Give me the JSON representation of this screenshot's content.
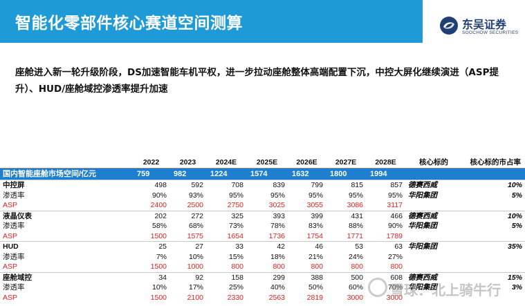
{
  "header": {
    "title": "智能化零部件核心赛道空间测算"
  },
  "logo": {
    "name": "东吴证券",
    "english": "SOOCHOW SECURITIES"
  },
  "intro": "座舱进入新一轮升级阶段，DS加速智能车机平权，进一步拉动座舱整体高端配置下沉，中控大屏化继续演进（ASP提升）、HUD/座舱域控渗透率提升加速",
  "table": {
    "headers": [
      "",
      "2022",
      "2023",
      "2024E",
      "2025E",
      "2026E",
      "2027E",
      "2028E",
      "核心标的",
      "核心标的市占率"
    ],
    "market": {
      "label": "国内智能座舱市场空间/亿元",
      "values": [
        "759",
        "982",
        "1224",
        "1574",
        "1632",
        "1800",
        "1994"
      ]
    },
    "rows": [
      {
        "type": "cat",
        "label": "中控屏",
        "values": [
          "498",
          "592",
          "708",
          "839",
          "799",
          "815",
          "857"
        ],
        "company": "德赛西威",
        "share": "10%"
      },
      {
        "type": "pen",
        "label": "渗透率",
        "values": [
          "90%",
          "93%",
          "95%",
          "95%",
          "95%",
          "95%",
          "95%"
        ],
        "company": "华阳集团",
        "share": "5%"
      },
      {
        "type": "asp",
        "label": "ASP",
        "values": [
          "2400",
          "2500",
          "2750",
          "3025",
          "3055",
          "3086",
          "3117"
        ],
        "company": "",
        "share": ""
      },
      {
        "type": "cat",
        "label": "液晶仪表",
        "values": [
          "202",
          "272",
          "325",
          "393",
          "399",
          "431",
          "466"
        ],
        "company": "德赛西威",
        "share": "10%"
      },
      {
        "type": "pen",
        "label": "渗透率",
        "values": [
          "58%",
          "68%",
          "73%",
          "78%",
          "83%",
          "88%",
          "90%"
        ],
        "company": "华阳集团",
        "share": "5%"
      },
      {
        "type": "asp",
        "label": "ASP",
        "values": [
          "1500",
          "1575",
          "1654",
          "1736",
          "1754",
          "1771",
          "1789"
        ],
        "company": "",
        "share": ""
      },
      {
        "type": "cat",
        "label": "HUD",
        "values": [
          "25",
          "27",
          "33",
          "42",
          "46",
          "53",
          "63"
        ],
        "company": "华阳集团",
        "share": "35%"
      },
      {
        "type": "pen",
        "label": "渗透率",
        "values": [
          "7%",
          "10%",
          "15%",
          "18%",
          "21%",
          "24%",
          "27%"
        ],
        "company": "",
        "share": ""
      },
      {
        "type": "asp",
        "label": "ASP",
        "values": [
          "1500",
          "1000",
          "800",
          "800",
          "800",
          "800",
          "800"
        ],
        "company": "",
        "share": ""
      },
      {
        "type": "cat",
        "label": "座舱域控",
        "values": [
          "34",
          "92",
          "158",
          "299",
          "388",
          "500",
          "608"
        ],
        "company": "德赛西威",
        "share": "15%"
      },
      {
        "type": "pen",
        "label": "渗透率",
        "values": [
          "10%",
          "17%",
          "25%",
          "40%",
          "50%",
          "60%",
          "70%"
        ],
        "company": "华阳集团",
        "share": "3%"
      },
      {
        "type": "asp",
        "label": "ASP",
        "values": [
          "1500",
          "2100",
          "2330",
          "2563",
          "2819",
          "3000",
          "3000"
        ],
        "company": "",
        "share": ""
      }
    ]
  },
  "watermark": {
    "text": "雪球：北上骑牛行"
  }
}
